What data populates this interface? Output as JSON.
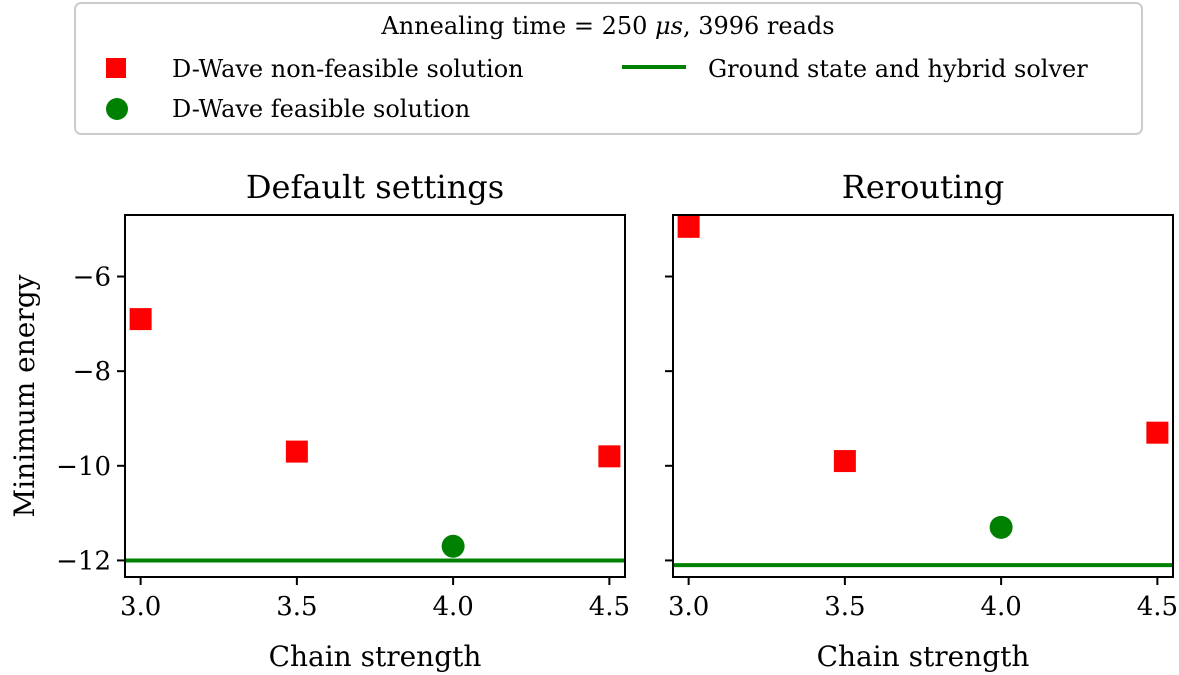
{
  "legend": {
    "title_prefix": "Annealing time = 250 ",
    "title_mu": "μs",
    "title_suffix": ", 3996 reads",
    "entries": [
      {
        "label": "D-Wave non-feasible solution",
        "marker": "square",
        "color": "#ff0000"
      },
      {
        "label": "D-Wave feasible solution",
        "marker": "circle",
        "color": "#008000"
      },
      {
        "label": "Ground state and hybrid solver",
        "marker": "line",
        "color": "#008000"
      }
    ]
  },
  "chart_data": [
    {
      "type": "scatter",
      "title": "Default settings",
      "xlabel": "Chain strength",
      "ylabel": "Minimum energy",
      "xlim": [
        2.95,
        4.55
      ],
      "ylim": [
        -12.35,
        -4.7
      ],
      "xticks": [
        3.0,
        3.5,
        4.0,
        4.5
      ],
      "xtick_labels": [
        "3.0",
        "3.5",
        "4.0",
        "4.5"
      ],
      "yticks": [
        -6,
        -8,
        -10,
        -12
      ],
      "ytick_labels": [
        "−6",
        "−8",
        "−10",
        "−12"
      ],
      "grid": false,
      "series": [
        {
          "name": "D-Wave non-feasible solution",
          "marker": "square",
          "color": "#ff0000",
          "points": [
            [
              3.0,
              -6.9
            ],
            [
              3.5,
              -9.7
            ],
            [
              4.5,
              -9.8
            ]
          ]
        },
        {
          "name": "D-Wave feasible solution",
          "marker": "circle",
          "color": "#008000",
          "points": [
            [
              4.0,
              -11.7
            ]
          ]
        },
        {
          "name": "Ground state and hybrid solver",
          "marker": "hline",
          "color": "#008000",
          "y": -12.0
        }
      ]
    },
    {
      "type": "scatter",
      "title": "Rerouting",
      "xlabel": "Chain strength",
      "ylabel": "",
      "xlim": [
        2.95,
        4.55
      ],
      "ylim": [
        -12.35,
        -4.7
      ],
      "xticks": [
        3.0,
        3.5,
        4.0,
        4.5
      ],
      "xtick_labels": [
        "3.0",
        "3.5",
        "4.0",
        "4.5"
      ],
      "yticks": [
        -6,
        -8,
        -10,
        -12
      ],
      "ytick_labels": [],
      "grid": false,
      "series": [
        {
          "name": "D-Wave non-feasible solution",
          "marker": "square",
          "color": "#ff0000",
          "points": [
            [
              3.0,
              -4.95
            ],
            [
              3.5,
              -9.9
            ],
            [
              4.5,
              -9.3
            ]
          ]
        },
        {
          "name": "D-Wave feasible solution",
          "marker": "circle",
          "color": "#008000",
          "points": [
            [
              4.0,
              -11.3
            ]
          ]
        },
        {
          "name": "Ground state and hybrid solver",
          "marker": "hline",
          "color": "#008000",
          "y": -12.1
        }
      ]
    }
  ]
}
